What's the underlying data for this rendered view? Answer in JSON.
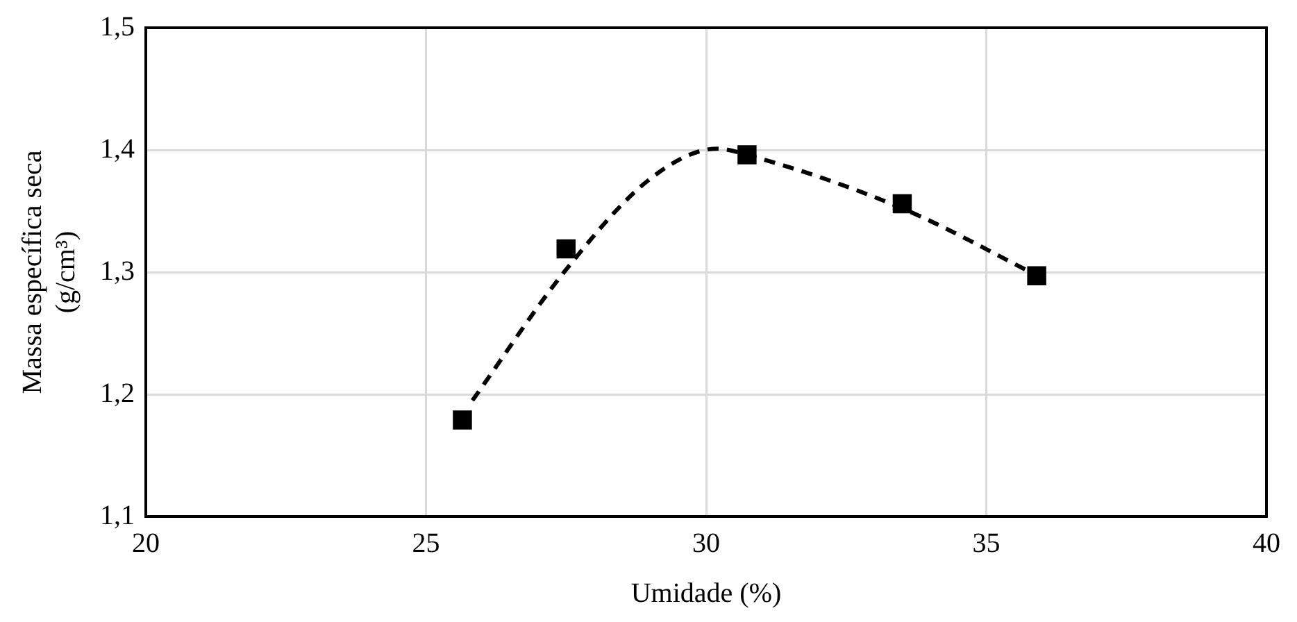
{
  "chart_data": {
    "type": "scatter",
    "xlabel": "Umidade (%)",
    "ylabel": "Massa específica seca (g/cm³)",
    "xlim": [
      20,
      40
    ],
    "xticks": [
      20,
      25,
      30,
      35,
      40
    ],
    "ylim": [
      1.1,
      1.5
    ],
    "yticks": [
      {
        "value": 1.1,
        "label": "1,1"
      },
      {
        "value": 1.2,
        "label": "1,2"
      },
      {
        "value": 1.3,
        "label": "1,3"
      },
      {
        "value": 1.4,
        "label": "1,4"
      },
      {
        "value": 1.5,
        "label": "1,5"
      }
    ],
    "grid": true,
    "legend": false,
    "series": [
      {
        "color": "#000000",
        "marker": "square",
        "x": [
          25.65,
          27.5,
          30.73,
          33.5,
          35.9
        ],
        "values": [
          1.179,
          1.319,
          1.396,
          1.356,
          1.297
        ]
      },
      {
        "type": "line",
        "color": "#000000",
        "marker": "none",
        "line_style": "dashed",
        "x": [
          25.83,
          27.5,
          29.02,
          30.2,
          30.73,
          33.51,
          35.92
        ],
        "values": [
          1.195,
          1.302,
          1.377,
          1.401,
          1.396,
          1.352,
          1.297
        ]
      }
    ]
  }
}
